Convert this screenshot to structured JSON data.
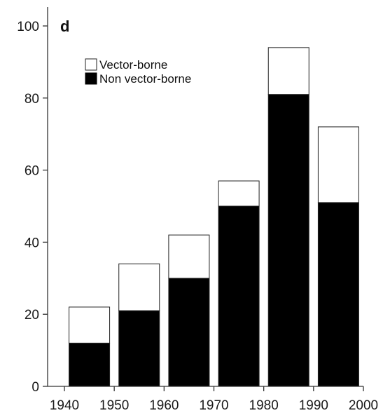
{
  "chart_data": {
    "type": "bar",
    "stacked": true,
    "panel_label": "d",
    "title": "",
    "xlabel": "",
    "ylabel": "",
    "categories": [
      "1940s",
      "1950s",
      "1960s",
      "1970s",
      "1980s",
      "1990s"
    ],
    "x_ticks": [
      "1940",
      "1950",
      "1960",
      "1970",
      "1980",
      "1990",
      "2000"
    ],
    "x_range": [
      1940,
      2000
    ],
    "y_ticks": [
      "0",
      "20",
      "40",
      "60",
      "80",
      "100"
    ],
    "ylim": [
      0,
      100
    ],
    "grid": false,
    "legend_position": "top-left",
    "series": [
      {
        "name": "Non vector-borne",
        "color": "#000000",
        "values": [
          12,
          21,
          30,
          50,
          81,
          51
        ]
      },
      {
        "name": "Vector-borne",
        "color": "#ffffff",
        "values": [
          10,
          13,
          12,
          7,
          13,
          21
        ]
      }
    ]
  }
}
